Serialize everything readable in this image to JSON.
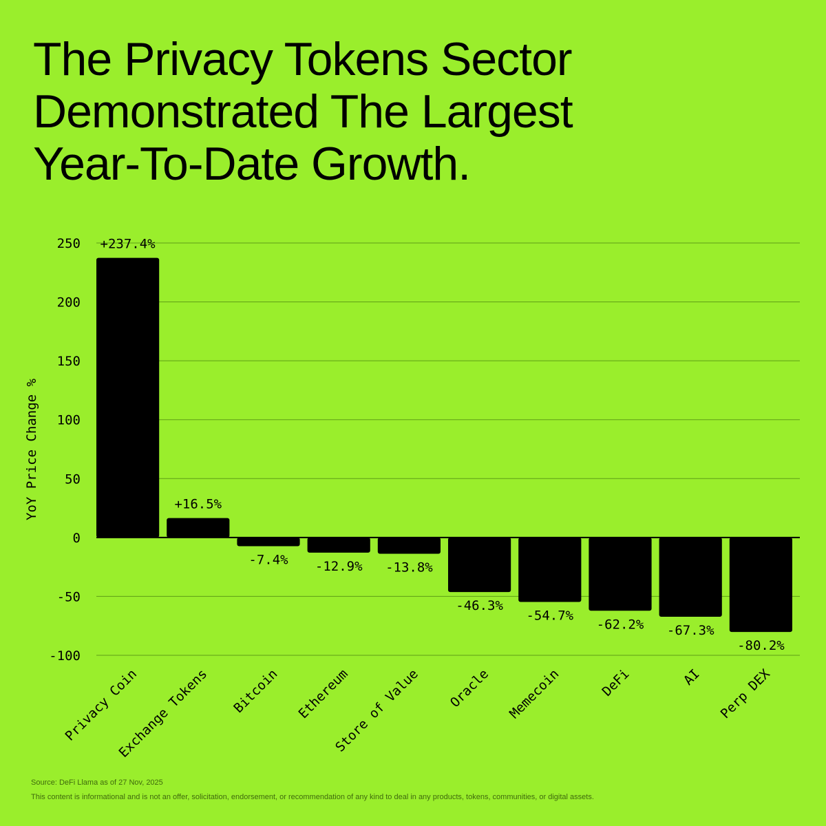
{
  "title_lines": [
    "The Privacy Tokens Sector",
    "Demonstrated The Largest",
    "Year-To-Date Growth."
  ],
  "chart_data": {
    "type": "bar",
    "ylabel": "YoY Price Change %",
    "xlabel": "",
    "ylim": [
      -100,
      250
    ],
    "yticks": [
      250,
      200,
      150,
      100,
      50,
      0,
      -50,
      -100
    ],
    "grid": true,
    "categories": [
      "Privacy Coin",
      "Exchange Tokens",
      "Bitcoin",
      "Ethereum",
      "Store of Value",
      "Oracle",
      "Memecoin",
      "DeFi",
      "AI",
      "Perp DEX"
    ],
    "values": [
      237.4,
      16.5,
      -7.4,
      -12.9,
      -13.8,
      -46.3,
      -54.7,
      -62.2,
      -67.3,
      -80.2
    ],
    "data_labels": [
      "+237.4%",
      "+16.5%",
      "-7.4%",
      "-12.9%",
      "-13.8%",
      "-46.3%",
      "-54.7%",
      "-62.2%",
      "-67.3%",
      "-80.2%"
    ],
    "colors": {
      "bar": "#000000",
      "background": "#9AEE2C",
      "grid": "#5e9e16"
    }
  },
  "footer": {
    "source": "Source: DeFi Llama as of 27 Nov, 2025",
    "disclaimer": "This content is informational and is not an offer, solicitation, endorsement, or recommendation of any kind to deal in any products, tokens, communities, or digital assets."
  }
}
